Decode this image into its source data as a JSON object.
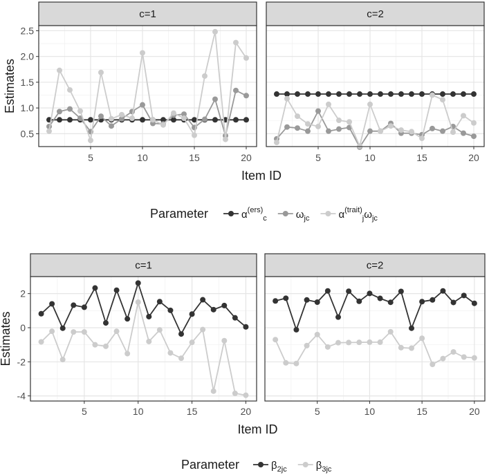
{
  "colors": {
    "dark": "#333333",
    "mid": "#999999",
    "light": "#cccccc",
    "grid_major": "#e5e5e5",
    "grid_minor": "#f2f2f2",
    "strip_bg": "#d9d9d9",
    "border": "#333333"
  },
  "chart_data": [
    {
      "type": "line",
      "facets": [
        "c=1",
        "c=2"
      ],
      "xlabel": "Item ID",
      "ylabel": "Estimates",
      "x": [
        1,
        2,
        3,
        4,
        5,
        6,
        7,
        8,
        9,
        10,
        11,
        12,
        13,
        14,
        15,
        16,
        17,
        18,
        19,
        20
      ],
      "xlim": [
        0,
        21
      ],
      "ylim": [
        0.25,
        2.6
      ],
      "xticks": [
        5,
        10,
        15,
        20
      ],
      "yticks": [
        0.5,
        1.0,
        1.5,
        2.0,
        2.5
      ],
      "ytick_labels": [
        "0.5",
        "1.0",
        "1.5",
        "2.0",
        "2.5"
      ],
      "legend": {
        "title": "Parameter",
        "position": "bottom",
        "entries": [
          {
            "main": "α",
            "sub": "c",
            "sup": "(ers)",
            "tail_main": "",
            "tail_sub": ""
          },
          {
            "main": "ω",
            "sub": "jc",
            "sup": "",
            "tail_main": "",
            "tail_sub": ""
          },
          {
            "main": "α",
            "sub": "j",
            "sup": "(trait)",
            "tail_main": "ω",
            "tail_sub": "jc"
          }
        ]
      },
      "series": [
        {
          "name": "alpha_c_ers",
          "color": "#333333",
          "values": {
            "c=1": [
              0.77,
              0.77,
              0.77,
              0.77,
              0.77,
              0.77,
              0.77,
              0.77,
              0.77,
              0.77,
              0.77,
              0.77,
              0.77,
              0.77,
              0.77,
              0.77,
              0.77,
              0.77,
              0.77,
              0.77
            ],
            "c=2": [
              1.27,
              1.27,
              1.27,
              1.27,
              1.27,
              1.27,
              1.27,
              1.27,
              1.27,
              1.27,
              1.27,
              1.27,
              1.27,
              1.27,
              1.27,
              1.27,
              1.27,
              1.27,
              1.27,
              1.27
            ]
          }
        },
        {
          "name": "omega_jc",
          "color": "#999999",
          "values": {
            "c=1": [
              0.64,
              0.93,
              0.98,
              0.8,
              0.54,
              0.84,
              0.65,
              0.79,
              0.93,
              1.06,
              0.7,
              0.69,
              0.86,
              0.88,
              0.62,
              0.78,
              1.17,
              0.46,
              1.34,
              1.24
            ],
            "c=2": [
              0.4,
              0.63,
              0.61,
              0.55,
              0.94,
              0.55,
              0.59,
              0.62,
              0.24,
              0.55,
              0.55,
              0.7,
              0.51,
              0.51,
              0.48,
              0.6,
              0.55,
              0.64,
              0.51,
              0.45
            ]
          }
        },
        {
          "name": "alpha_j_trait_omega_jc",
          "color": "#cccccc",
          "values": {
            "c=1": [
              0.55,
              1.73,
              1.35,
              0.94,
              0.37,
              1.69,
              0.79,
              0.87,
              0.8,
              2.07,
              0.77,
              0.67,
              0.9,
              0.8,
              0.47,
              1.62,
              2.48,
              0.39,
              2.27,
              1.97
            ],
            "c=2": [
              0.33,
              1.18,
              0.84,
              0.69,
              0.64,
              1.07,
              0.76,
              0.73,
              0.26,
              1.07,
              0.55,
              0.65,
              0.57,
              0.54,
              0.41,
              1.25,
              1.16,
              0.53,
              0.85,
              0.71
            ]
          }
        }
      ]
    },
    {
      "type": "line",
      "facets": [
        "c=1",
        "c=2"
      ],
      "xlabel": "Item ID",
      "ylabel": "Estimates",
      "x": [
        1,
        2,
        3,
        4,
        5,
        6,
        7,
        8,
        9,
        10,
        11,
        12,
        13,
        14,
        15,
        16,
        17,
        18,
        19,
        20
      ],
      "xlim": [
        0,
        21
      ],
      "ylim": [
        -4.3,
        3.0
      ],
      "xticks": [
        5,
        10,
        15,
        20
      ],
      "yticks": [
        -4,
        -2,
        0,
        2
      ],
      "ytick_labels": [
        "-4",
        "-2",
        "0",
        "2"
      ],
      "legend": {
        "title": "Parameter",
        "position": "bottom",
        "entries": [
          {
            "main": "β",
            "sub": "2jc",
            "sup": "",
            "tail_main": "",
            "tail_sub": ""
          },
          {
            "main": "β",
            "sub": "3jc",
            "sup": "",
            "tail_main": "",
            "tail_sub": ""
          }
        ]
      },
      "series": [
        {
          "name": "beta_2jc",
          "color": "#333333",
          "values": {
            "c=1": [
              0.82,
              1.4,
              -0.03,
              1.32,
              1.2,
              2.33,
              0.28,
              2.2,
              0.52,
              2.62,
              0.65,
              1.53,
              1.02,
              -0.37,
              0.8,
              1.64,
              1.06,
              1.3,
              0.58,
              0.05
            ],
            "c=2": [
              1.57,
              1.73,
              -0.12,
              1.63,
              1.5,
              2.16,
              0.62,
              2.14,
              1.55,
              2.01,
              1.72,
              1.49,
              2.13,
              -0.03,
              1.53,
              1.63,
              2.16,
              1.48,
              1.89,
              1.43
            ]
          }
        },
        {
          "name": "beta_3jc",
          "color": "#cccccc",
          "values": {
            "c=1": [
              -0.83,
              -0.21,
              -1.87,
              -0.25,
              -0.25,
              -1.0,
              -1.09,
              -0.21,
              -1.52,
              1.5,
              -0.81,
              -0.13,
              -1.48,
              -1.79,
              -0.86,
              -0.11,
              -3.72,
              -0.76,
              -3.85,
              -3.96
            ],
            "c=2": [
              -0.7,
              -2.06,
              -2.1,
              -1.05,
              -0.4,
              -1.13,
              -0.88,
              -0.87,
              -0.86,
              -0.85,
              -0.85,
              -0.24,
              -1.17,
              -1.2,
              -0.62,
              -2.15,
              -1.81,
              -1.42,
              -1.72,
              -1.77
            ]
          }
        }
      ]
    }
  ]
}
